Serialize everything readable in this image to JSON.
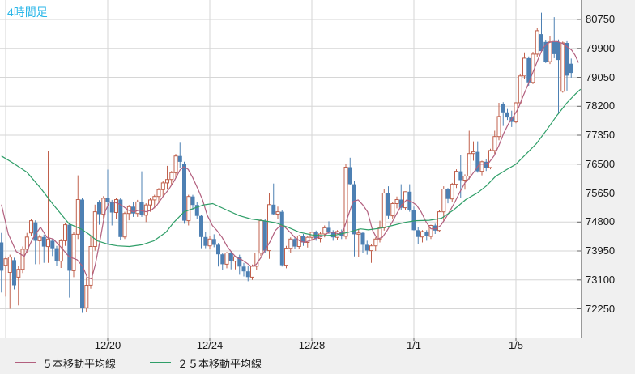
{
  "header": {
    "timeframe_label": "4時間足",
    "timeframe_color": "#29b6e8"
  },
  "legend": {
    "items": [
      {
        "label": "５本移動平均線",
        "color": "#b25f7e"
      },
      {
        "label": "２５本移動平均線",
        "color": "#2f9e68"
      }
    ]
  },
  "axes": {
    "y_ticks": [
      80750,
      79900,
      79050,
      78200,
      77350,
      76500,
      75650,
      74800,
      73950,
      73100,
      72250
    ],
    "x_ticks": [
      {
        "label": "",
        "index": 1
      },
      {
        "label": "12/20",
        "index": 25
      },
      {
        "label": "12/24",
        "index": 49
      },
      {
        "label": "12/28",
        "index": 73
      },
      {
        "label": "1/1",
        "index": 97
      },
      {
        "label": "1/5",
        "index": 121
      }
    ]
  },
  "colors": {
    "background": "#ffffff",
    "axis_panel": "#f0f0f0",
    "grid": "#d6d6d6",
    "axis_border": "#999999",
    "tick": "#666666",
    "up_stroke": "#c0604c",
    "up_fill": "#ffffff",
    "down_fill": "#4d80b3",
    "ma5": "#b25f7e",
    "ma25": "#2f9e68"
  },
  "chart_data": {
    "type": "candlestick",
    "title": "4時間足",
    "ylabel": "",
    "xlabel": "",
    "y_axis": {
      "tick_values": [
        80750,
        79900,
        79050,
        78200,
        77350,
        76500,
        75650,
        74800,
        73950,
        73100,
        72250
      ],
      "plot_min": 71400,
      "plot_max": 81320
    },
    "x_axis": {
      "tick_labels": [
        "12/20",
        "12/24",
        "12/28",
        "1/1",
        "1/5"
      ],
      "tick_candle_index": [
        25,
        49,
        73,
        97,
        121
      ]
    },
    "legend_entries": [
      "５本移動平均線",
      "２５本移動平均線"
    ],
    "candles_format": [
      "open",
      "high",
      "low",
      "close"
    ],
    "candles": [
      [
        74200,
        74480,
        72730,
        73370
      ],
      [
        73530,
        73790,
        72610,
        73720
      ],
      [
        73320,
        73840,
        72250,
        73770
      ],
      [
        73680,
        73750,
        72820,
        72940
      ],
      [
        73180,
        73500,
        72350,
        73410
      ],
      [
        73410,
        74080,
        73300,
        74000
      ],
      [
        74000,
        74480,
        73900,
        74360
      ],
      [
        74480,
        74900,
        74380,
        74840
      ],
      [
        74790,
        74850,
        73560,
        74250
      ],
      [
        74250,
        74430,
        73560,
        74360
      ],
      [
        74360,
        74430,
        73600,
        74080
      ],
      [
        74080,
        76880,
        73600,
        74300
      ],
      [
        74250,
        74300,
        73800,
        74030
      ],
      [
        74030,
        74100,
        73500,
        73650
      ],
      [
        73650,
        74300,
        73450,
        74250
      ],
      [
        74250,
        74780,
        74100,
        74720
      ],
      [
        74720,
        74760,
        72580,
        73370
      ],
      [
        73370,
        74500,
        73180,
        74440
      ],
      [
        74440,
        76170,
        74300,
        75460
      ],
      [
        75460,
        75500,
        72130,
        72280
      ],
      [
        72280,
        73180,
        72150,
        72940
      ],
      [
        72940,
        74390,
        72840,
        74080
      ],
      [
        74080,
        75310,
        73960,
        75100
      ],
      [
        75390,
        75440,
        74720,
        75030
      ],
      [
        75030,
        75560,
        74900,
        75500
      ],
      [
        75500,
        76340,
        74130,
        75400
      ],
      [
        75400,
        75450,
        74700,
        75080
      ],
      [
        75080,
        75500,
        74900,
        75460
      ],
      [
        75460,
        75500,
        74260,
        74360
      ],
      [
        74360,
        75100,
        74300,
        75050
      ],
      [
        75050,
        75300,
        74850,
        75250
      ],
      [
        75250,
        75400,
        74950,
        75050
      ],
      [
        75050,
        75450,
        74950,
        75390
      ],
      [
        75390,
        76290,
        74950,
        75000
      ],
      [
        75000,
        75350,
        74800,
        75300
      ],
      [
        75300,
        75500,
        75100,
        75450
      ],
      [
        75450,
        75600,
        75200,
        75550
      ],
      [
        75550,
        75800,
        75350,
        75750
      ],
      [
        75750,
        76000,
        75550,
        75950
      ],
      [
        75950,
        76450,
        75750,
        76050
      ],
      [
        76050,
        76300,
        75900,
        76250
      ],
      [
        76250,
        76800,
        76100,
        76740
      ],
      [
        76740,
        77130,
        76400,
        76570
      ],
      [
        76500,
        76570,
        74750,
        74840
      ],
      [
        74840,
        75600,
        74700,
        75550
      ],
      [
        75550,
        75600,
        75150,
        75300
      ],
      [
        75300,
        75380,
        74900,
        74980
      ],
      [
        74980,
        75000,
        74030,
        74360
      ],
      [
        74360,
        74510,
        74030,
        74100
      ],
      [
        74100,
        74400,
        74000,
        74300
      ],
      [
        74300,
        74440,
        74060,
        74130
      ],
      [
        74130,
        74180,
        73490,
        73850
      ],
      [
        73850,
        73900,
        73400,
        73560
      ],
      [
        73560,
        73920,
        73440,
        73890
      ],
      [
        73890,
        73950,
        73410,
        73650
      ],
      [
        73650,
        73800,
        73410,
        73780
      ],
      [
        73780,
        73840,
        73250,
        73490
      ],
      [
        73490,
        73600,
        73200,
        73350
      ],
      [
        73350,
        73500,
        73060,
        73180
      ],
      [
        73180,
        73550,
        73100,
        73500
      ],
      [
        73500,
        73900,
        73400,
        73890
      ],
      [
        73890,
        74900,
        73800,
        74840
      ],
      [
        74840,
        74880,
        73900,
        73960
      ],
      [
        73960,
        75650,
        73720,
        75310
      ],
      [
        75310,
        75930,
        75000,
        75030
      ],
      [
        75030,
        75250,
        74900,
        75100
      ],
      [
        75100,
        75150,
        73490,
        73530
      ],
      [
        73530,
        74100,
        73440,
        74030
      ],
      [
        74030,
        74350,
        73900,
        74300
      ],
      [
        74300,
        74350,
        74000,
        74080
      ],
      [
        74080,
        74420,
        74000,
        74390
      ],
      [
        74390,
        74450,
        74100,
        74200
      ],
      [
        74200,
        74400,
        74050,
        74350
      ],
      [
        74350,
        74520,
        74250,
        74500
      ],
      [
        74500,
        74550,
        74250,
        74320
      ],
      [
        74320,
        74500,
        74200,
        74450
      ],
      [
        74450,
        74700,
        74350,
        74630
      ],
      [
        74630,
        74820,
        74450,
        74500
      ],
      [
        74500,
        74560,
        74250,
        74350
      ],
      [
        74350,
        74560,
        74280,
        74520
      ],
      [
        74520,
        74580,
        74300,
        74380
      ],
      [
        74380,
        76500,
        74300,
        76410
      ],
      [
        76410,
        76690,
        75900,
        75910
      ],
      [
        75910,
        76000,
        73790,
        74440
      ],
      [
        74440,
        74600,
        73770,
        74480
      ],
      [
        74480,
        74520,
        73900,
        74130
      ],
      [
        74130,
        74250,
        73840,
        73960
      ],
      [
        73960,
        74150,
        73600,
        74100
      ],
      [
        74100,
        74350,
        73950,
        74300
      ],
      [
        74300,
        74840,
        74200,
        74630
      ],
      [
        74630,
        75770,
        74550,
        75650
      ],
      [
        75650,
        75850,
        74900,
        74980
      ],
      [
        74980,
        75400,
        74900,
        75340
      ],
      [
        75340,
        75550,
        75200,
        75460
      ],
      [
        75460,
        75910,
        75150,
        75220
      ],
      [
        75220,
        75700,
        75150,
        75690
      ],
      [
        75690,
        75910,
        75100,
        75150
      ],
      [
        75150,
        75250,
        74550,
        74560
      ],
      [
        74560,
        74650,
        74150,
        74360
      ],
      [
        74360,
        74560,
        74200,
        74520
      ],
      [
        74520,
        74560,
        74250,
        74380
      ],
      [
        74380,
        74720,
        74300,
        74700
      ],
      [
        74700,
        74750,
        74450,
        74550
      ],
      [
        74550,
        75150,
        74500,
        75100
      ],
      [
        75100,
        75850,
        74840,
        75770
      ],
      [
        75770,
        75800,
        75350,
        75480
      ],
      [
        75480,
        75950,
        75400,
        75910
      ],
      [
        75910,
        76350,
        75800,
        76290
      ],
      [
        76290,
        76760,
        75500,
        76030
      ],
      [
        76030,
        76200,
        75750,
        76150
      ],
      [
        76150,
        77480,
        76050,
        76810
      ],
      [
        76810,
        77170,
        76600,
        76860
      ],
      [
        76860,
        77170,
        76250,
        76290
      ],
      [
        76290,
        76600,
        76170,
        76570
      ],
      [
        76570,
        76650,
        76300,
        76400
      ],
      [
        76400,
        76950,
        76350,
        76900
      ],
      [
        76900,
        77480,
        76800,
        77310
      ],
      [
        77310,
        78300,
        77200,
        77900
      ],
      [
        78260,
        78320,
        77620,
        78020
      ],
      [
        78020,
        78120,
        77800,
        77870
      ],
      [
        77870,
        78070,
        77590,
        77740
      ],
      [
        77740,
        78320,
        77700,
        78300
      ],
      [
        78300,
        79160,
        78250,
        79090
      ],
      [
        79090,
        79780,
        79000,
        79610
      ],
      [
        79610,
        79660,
        78800,
        78900
      ],
      [
        78900,
        79800,
        78850,
        79730
      ],
      [
        79730,
        80490,
        79650,
        80420
      ],
      [
        80320,
        80950,
        79800,
        79820
      ],
      [
        80090,
        80150,
        79470,
        79510
      ],
      [
        79510,
        80250,
        79440,
        80090
      ],
      [
        80090,
        80820,
        79610,
        79730
      ],
      [
        80090,
        80160,
        78000,
        79560
      ],
      [
        78640,
        80100,
        78600,
        80060
      ],
      [
        80060,
        80110,
        78660,
        79100
      ],
      [
        79450,
        79600,
        79040,
        79180
      ]
    ],
    "ma5_points": [
      [
        0,
        75310
      ],
      [
        1.6,
        74450
      ],
      [
        3.5,
        73930
      ],
      [
        5.4,
        73790
      ],
      [
        7.3,
        74300
      ],
      [
        9.2,
        74650
      ],
      [
        10.7,
        74350
      ],
      [
        12.2,
        74300
      ],
      [
        14,
        74060
      ],
      [
        15.9,
        73780
      ],
      [
        17.8,
        73690
      ],
      [
        19.1,
        73500
      ],
      [
        20.2,
        73170
      ],
      [
        21.2,
        73130
      ],
      [
        22.1,
        73560
      ],
      [
        23.3,
        74340
      ],
      [
        24.4,
        75100
      ],
      [
        25.4,
        75390
      ],
      [
        26.7,
        75380
      ],
      [
        28.2,
        75300
      ],
      [
        29.8,
        75150
      ],
      [
        31.1,
        75100
      ],
      [
        32.4,
        75150
      ],
      [
        34,
        75100
      ],
      [
        35.3,
        75150
      ],
      [
        36.6,
        75300
      ],
      [
        38,
        75550
      ],
      [
        39.3,
        75750
      ],
      [
        40.6,
        76000
      ],
      [
        42,
        76330
      ],
      [
        42.9,
        76420
      ],
      [
        43.9,
        76350
      ],
      [
        45,
        76100
      ],
      [
        46.1,
        75800
      ],
      [
        47.3,
        75450
      ],
      [
        48.4,
        75000
      ],
      [
        49.6,
        74700
      ],
      [
        50.7,
        74550
      ],
      [
        51.9,
        74350
      ],
      [
        53,
        74100
      ],
      [
        54.2,
        73900
      ],
      [
        55.3,
        73750
      ],
      [
        56.4,
        73700
      ],
      [
        57.6,
        73600
      ],
      [
        58.7,
        73500
      ],
      [
        59.9,
        73550
      ],
      [
        61,
        73750
      ],
      [
        62.1,
        74000
      ],
      [
        63.3,
        74250
      ],
      [
        64.4,
        74550
      ],
      [
        65.6,
        74700
      ],
      [
        66.7,
        74650
      ],
      [
        67.9,
        74500
      ],
      [
        69,
        74350
      ],
      [
        70.1,
        74250
      ],
      [
        71.3,
        74200
      ],
      [
        72.4,
        74250
      ],
      [
        73.6,
        74300
      ],
      [
        74.7,
        74350
      ],
      [
        75.9,
        74400
      ],
      [
        77,
        74500
      ],
      [
        78.1,
        74500
      ],
      [
        79.3,
        74450
      ],
      [
        80.4,
        74550
      ],
      [
        81.6,
        75000
      ],
      [
        82.7,
        75400
      ],
      [
        83.9,
        75450
      ],
      [
        85,
        75300
      ],
      [
        86.1,
        75100
      ],
      [
        87.3,
        74550
      ],
      [
        88.4,
        74300
      ],
      [
        89.6,
        74350
      ],
      [
        90.7,
        74550
      ],
      [
        91.9,
        74800
      ],
      [
        93,
        75050
      ],
      [
        94.1,
        75300
      ],
      [
        95.3,
        75450
      ],
      [
        96.4,
        75400
      ],
      [
        97.6,
        75300
      ],
      [
        98.7,
        75100
      ],
      [
        99.9,
        74800
      ],
      [
        101,
        74600
      ],
      [
        102.1,
        74600
      ],
      [
        103.3,
        74700
      ],
      [
        104.4,
        74900
      ],
      [
        105.6,
        75150
      ],
      [
        106.7,
        75400
      ],
      [
        107.9,
        75700
      ],
      [
        109,
        75950
      ],
      [
        110.1,
        76100
      ],
      [
        111.3,
        76300
      ],
      [
        112.4,
        76500
      ],
      [
        113.6,
        76500
      ],
      [
        114.7,
        76550
      ],
      [
        115.9,
        76750
      ],
      [
        117,
        77050
      ],
      [
        118.1,
        77400
      ],
      [
        119.3,
        77700
      ],
      [
        120.4,
        77900
      ],
      [
        121.6,
        78150
      ],
      [
        122.7,
        78500
      ],
      [
        123.9,
        78850
      ],
      [
        125,
        79200
      ],
      [
        126.1,
        79550
      ],
      [
        127.3,
        79900
      ],
      [
        128.4,
        80050
      ],
      [
        129.6,
        80100
      ],
      [
        130.7,
        80100
      ],
      [
        131.9,
        80050
      ],
      [
        133,
        79950
      ],
      [
        134.1,
        79850
      ],
      [
        134.9,
        79700
      ],
      [
        135.7,
        79480
      ]
    ],
    "ma25_points": [
      [
        0,
        76740
      ],
      [
        2.5,
        76550
      ],
      [
        6,
        76260
      ],
      [
        9.2,
        75800
      ],
      [
        12.2,
        75310
      ],
      [
        15.9,
        74750
      ],
      [
        18.7,
        74600
      ],
      [
        20.6,
        74440
      ],
      [
        22.5,
        74250
      ],
      [
        25,
        74150
      ],
      [
        27.3,
        74100
      ],
      [
        30.1,
        74080
      ],
      [
        33,
        74130
      ],
      [
        35.9,
        74250
      ],
      [
        38.7,
        74500
      ],
      [
        40.6,
        74800
      ],
      [
        43,
        75100
      ],
      [
        47.5,
        75300
      ],
      [
        49.7,
        75340
      ],
      [
        53,
        75150
      ],
      [
        55.9,
        74990
      ],
      [
        58.7,
        74890
      ],
      [
        61.6,
        74840
      ],
      [
        64.4,
        74780
      ],
      [
        67.3,
        74650
      ],
      [
        70.1,
        74500
      ],
      [
        73,
        74420
      ],
      [
        75.9,
        74400
      ],
      [
        78.7,
        74420
      ],
      [
        81.6,
        74500
      ],
      [
        84.4,
        74600
      ],
      [
        86.3,
        74570
      ],
      [
        89.2,
        74620
      ],
      [
        92,
        74700
      ],
      [
        94.9,
        74790
      ],
      [
        97.4,
        74840
      ],
      [
        100.6,
        74850
      ],
      [
        103.5,
        74910
      ],
      [
        106.3,
        75150
      ],
      [
        109.2,
        75460
      ],
      [
        112.1,
        75670
      ],
      [
        114,
        75860
      ],
      [
        116.2,
        76140
      ],
      [
        118.7,
        76330
      ],
      [
        121,
        76500
      ],
      [
        123.5,
        76810
      ],
      [
        125.8,
        77100
      ],
      [
        128.2,
        77500
      ],
      [
        130.7,
        77940
      ],
      [
        133,
        78300
      ],
      [
        134.9,
        78550
      ],
      [
        136.2,
        78700
      ]
    ]
  }
}
